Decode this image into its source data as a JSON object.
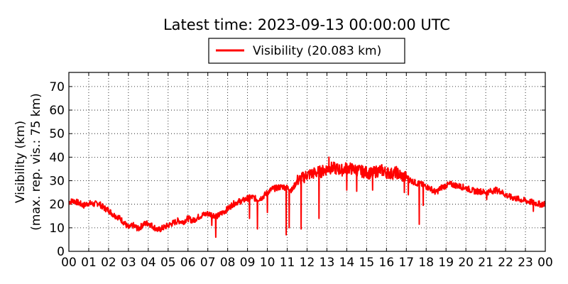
{
  "chart_data": {
    "type": "line",
    "title": "Latest time: 2023-09-13 00:00:00 UTC",
    "ylabel_line1": "Visibility (km)",
    "ylabel_line2": "(max. rep. vis.: 75 km)",
    "xlabel": "",
    "ylim": [
      0,
      76
    ],
    "yticks": [
      0,
      10,
      20,
      30,
      40,
      50,
      60,
      70
    ],
    "xlim": [
      0,
      24
    ],
    "xticks": [
      "00",
      "01",
      "02",
      "03",
      "04",
      "05",
      "06",
      "07",
      "08",
      "09",
      "10",
      "11",
      "12",
      "13",
      "14",
      "15",
      "16",
      "17",
      "18",
      "19",
      "20",
      "21",
      "22",
      "23",
      "00"
    ],
    "grid": true,
    "legend_position": "top-center",
    "series": [
      {
        "name": "Visibility (20.083 km)",
        "color": "#ff0000",
        "x": [
          0,
          0.25,
          0.5,
          0.75,
          1,
          1.25,
          1.5,
          1.75,
          2,
          2.25,
          2.5,
          2.75,
          3,
          3.25,
          3.5,
          3.75,
          4,
          4.25,
          4.5,
          4.75,
          5,
          5.25,
          5.5,
          5.75,
          6,
          6.25,
          6.5,
          6.75,
          7,
          7.25,
          7.5,
          7.75,
          8,
          8.25,
          8.5,
          8.75,
          9,
          9.25,
          9.5,
          9.75,
          10,
          10.25,
          10.5,
          10.75,
          11,
          11.25,
          11.5,
          11.75,
          12,
          12.25,
          12.5,
          12.75,
          13,
          13.25,
          13.5,
          13.75,
          14,
          14.25,
          14.5,
          14.75,
          15,
          15.25,
          15.5,
          15.75,
          16,
          16.25,
          16.5,
          16.75,
          17,
          17.25,
          17.5,
          17.75,
          18,
          18.25,
          18.5,
          18.75,
          19,
          19.25,
          19.5,
          19.75,
          20,
          20.25,
          20.5,
          20.75,
          21,
          21.25,
          21.5,
          21.75,
          22,
          22.25,
          22.5,
          22.75,
          23,
          23.25,
          23.5,
          23.75,
          24
        ],
        "y": [
          21,
          21.5,
          20.5,
          19.5,
          20.5,
          20,
          20.5,
          18.5,
          17.5,
          15.5,
          14.5,
          12.5,
          10,
          11,
          9.5,
          11.5,
          12,
          10.5,
          9,
          10,
          11,
          12,
          13,
          12.5,
          14,
          13,
          14.5,
          15.5,
          16,
          15.5,
          15,
          16.5,
          18,
          20,
          21,
          21.5,
          22.5,
          23,
          22,
          23,
          25,
          26.5,
          27,
          27.5,
          27,
          26,
          30,
          31,
          32.5,
          33,
          33.5,
          34,
          35,
          35.5,
          35,
          34.5,
          35.5,
          35,
          34.5,
          34,
          33.5,
          33,
          34,
          34.5,
          33.5,
          33,
          33.5,
          32,
          31.5,
          30,
          29,
          28.5,
          27.5,
          26.5,
          25,
          27,
          28,
          28.5,
          28,
          27.5,
          27,
          26,
          25.5,
          25.5,
          25,
          25.5,
          26,
          25.5,
          24,
          23,
          22.5,
          22,
          21.5,
          21,
          20.5,
          20,
          20.083
        ]
      }
    ],
    "spikes": [
      {
        "x": 7.4,
        "y": 6
      },
      {
        "x": 7.2,
        "y": 11
      },
      {
        "x": 9.1,
        "y": 14
      },
      {
        "x": 9.5,
        "y": 9.5
      },
      {
        "x": 10.0,
        "y": 16.5
      },
      {
        "x": 10.95,
        "y": 7
      },
      {
        "x": 11.1,
        "y": 10
      },
      {
        "x": 11.7,
        "y": 9.5
      },
      {
        "x": 12.6,
        "y": 14
      },
      {
        "x": 13.1,
        "y": 40
      },
      {
        "x": 14.0,
        "y": 26
      },
      {
        "x": 14.5,
        "y": 25.5
      },
      {
        "x": 15.3,
        "y": 26
      },
      {
        "x": 16.9,
        "y": 25
      },
      {
        "x": 17.1,
        "y": 24
      },
      {
        "x": 17.65,
        "y": 11.5
      },
      {
        "x": 17.85,
        "y": 19.5
      },
      {
        "x": 21.05,
        "y": 22
      },
      {
        "x": 23.4,
        "y": 17
      }
    ]
  }
}
